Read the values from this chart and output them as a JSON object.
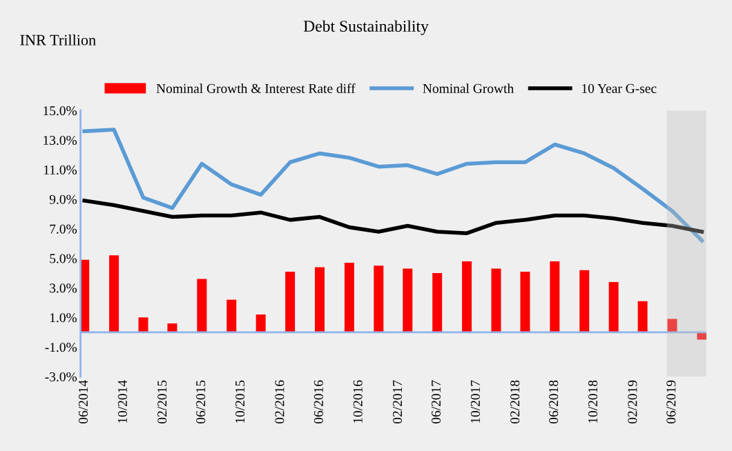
{
  "chart_data": {
    "type": "bar",
    "title": "Debt Sustainability",
    "annotations": [
      "INR Trillion"
    ],
    "x": [
      "2014-06",
      "2014-09",
      "2014-12",
      "2015-03",
      "2015-06",
      "2015-09",
      "2015-12",
      "2016-03",
      "2016-06",
      "2016-09",
      "2016-12",
      "2017-03",
      "2017-06",
      "2017-09",
      "2017-12",
      "2018-03",
      "2018-06",
      "2018-09",
      "2018-12",
      "2019-03",
      "2019-06",
      "2019-09"
    ],
    "series": [
      {
        "name": "Nominal Growth & Interest Rate diff",
        "color": "#ff0000",
        "values": [
          4.9,
          5.2,
          1.0,
          0.6,
          3.6,
          2.2,
          1.2,
          4.1,
          4.4,
          4.7,
          4.5,
          4.3,
          4.0,
          4.8,
          4.3,
          4.1,
          4.8,
          4.2,
          3.4,
          2.1,
          0.9,
          -0.5
        ]
      },
      {
        "name": "Nominal Growth",
        "type": "line",
        "color": "#5b9bd5",
        "values": [
          13.6,
          13.7,
          9.1,
          8.4,
          11.4,
          10.0,
          9.3,
          11.5,
          12.1,
          11.8,
          11.2,
          11.3,
          10.7,
          11.4,
          11.5,
          11.5,
          12.7,
          12.1,
          11.1,
          9.7,
          8.2,
          6.2
        ]
      },
      {
        "name": "10 Year G-sec",
        "type": "line",
        "color": "#000000",
        "values": [
          8.9,
          8.6,
          8.2,
          7.8,
          7.9,
          7.9,
          8.1,
          7.6,
          7.8,
          7.1,
          6.8,
          7.2,
          6.8,
          6.7,
          7.4,
          7.6,
          7.9,
          7.9,
          7.7,
          7.4,
          7.2,
          6.8
        ]
      }
    ],
    "xlim": [
      "2014-05-20",
      "2019-09-15"
    ],
    "xticks": [
      {
        "value": "2014-06",
        "label": "06/2014"
      },
      {
        "value": "2014-10",
        "label": "10/2014"
      },
      {
        "value": "2015-02",
        "label": "02/2015"
      },
      {
        "value": "2015-06",
        "label": "06/2015"
      },
      {
        "value": "2015-10",
        "label": "10/2015"
      },
      {
        "value": "2016-02",
        "label": "02/2016"
      },
      {
        "value": "2016-06",
        "label": "06/2016"
      },
      {
        "value": "2016-10",
        "label": "10/2016"
      },
      {
        "value": "2017-02",
        "label": "02/2017"
      },
      {
        "value": "2017-06",
        "label": "06/2017"
      },
      {
        "value": "2017-10",
        "label": "10/2017"
      },
      {
        "value": "2018-02",
        "label": "02/2018"
      },
      {
        "value": "2018-06",
        "label": "06/2018"
      },
      {
        "value": "2018-10",
        "label": "10/2018"
      },
      {
        "value": "2019-02",
        "label": "02/2019"
      },
      {
        "value": "2019-06",
        "label": "06/2019"
      }
    ],
    "ylim": [
      -3.0,
      15.0
    ],
    "yticks": [
      {
        "value": -3.0,
        "label": "-3.0%"
      },
      {
        "value": -1.0,
        "label": "-1.0%"
      },
      {
        "value": 1.0,
        "label": "1.0%"
      },
      {
        "value": 3.0,
        "label": "3.0%"
      },
      {
        "value": 5.0,
        "label": "5.0%"
      },
      {
        "value": 7.0,
        "label": "7.0%"
      },
      {
        "value": 9.0,
        "label": "9.0%"
      },
      {
        "value": 11.0,
        "label": "11.0%"
      },
      {
        "value": 13.0,
        "label": "13.0%"
      },
      {
        "value": 15.0,
        "label": "15.0%"
      }
    ],
    "ref_lines": [
      {
        "axis": "y",
        "value": 0,
        "color": "#8fb4ea"
      }
    ],
    "bands": [
      {
        "axis": "x",
        "from": "2019-05-15",
        "to": "2019-09-15",
        "color": "#bfbfbf"
      }
    ],
    "grid": false,
    "legend": "top",
    "line_style": "solid",
    "marker": "none"
  }
}
